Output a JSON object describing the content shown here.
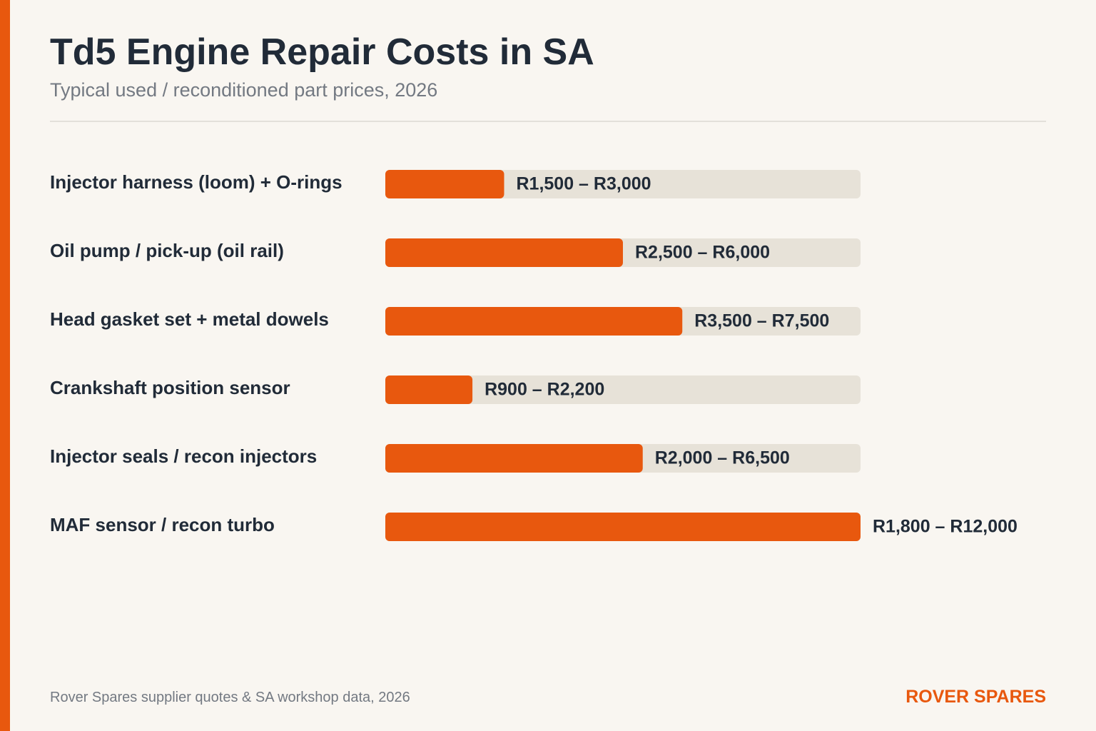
{
  "header": {
    "title": "Td5 Engine Repair Costs in SA",
    "subtitle": "Typical used / reconditioned part prices, 2026"
  },
  "footer": {
    "source": "Rover Spares supplier quotes & SA workshop data, 2026",
    "brand": "ROVER SPARES"
  },
  "colors": {
    "accent": "#e8580e",
    "track": "#e7e2d8",
    "text": "#212b38",
    "muted": "#737982",
    "background": "#f9f6f1"
  },
  "chart_data": {
    "type": "bar",
    "orientation": "horizontal",
    "title": "Td5 Engine Repair Costs in SA",
    "subtitle": "Typical used / reconditioned part prices, 2026",
    "categories": [
      "Injector harness (loom) + O-rings",
      "Oil pump / pick-up (oil rail)",
      "Head gasket set + metal dowels",
      "Crankshaft position sensor",
      "Injector seals / recon injectors",
      "MAF sensor / recon turbo"
    ],
    "values": [
      3000,
      6000,
      7500,
      2200,
      6500,
      12000
    ],
    "value_labels": [
      "R1,500 – R3,000",
      "R2,500 – R6,000",
      "R3,500 – R7,500",
      "R900 – R2,200",
      "R2,000 – R6,500",
      "R1,800 – R12,000"
    ],
    "xlim": [
      0,
      12000
    ],
    "grid": false,
    "legend": "none"
  }
}
